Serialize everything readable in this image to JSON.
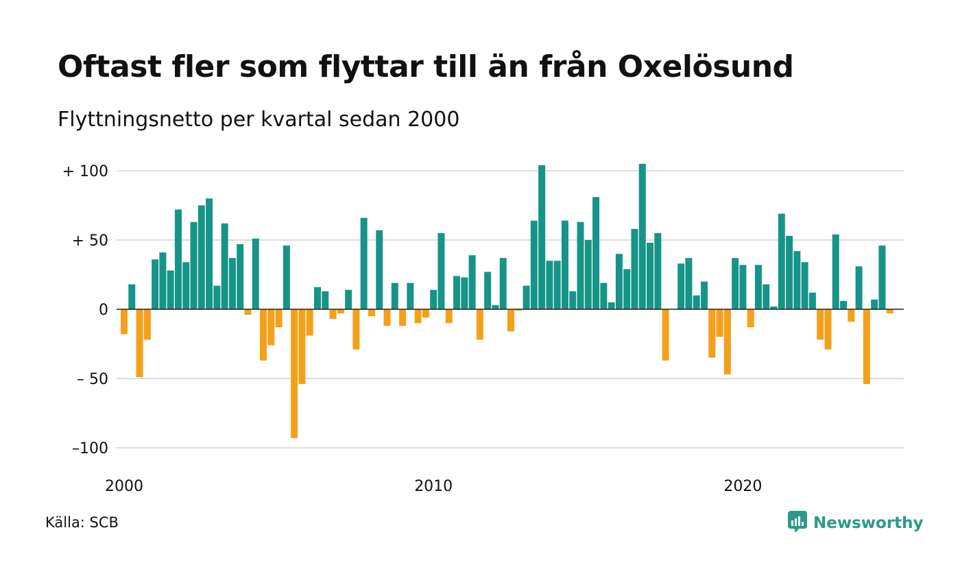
{
  "title": "Oftast fler som flyttar till än från Oxelösund",
  "subtitle": "Flyttningsnetto per kvartal sedan 2000",
  "source": "Källa: SCB",
  "brand": "Newsworthy",
  "icon": "newsworthy-logo-icon",
  "colors": {
    "positive": "#169487",
    "negative": "#f5a01a",
    "grid": "#dddddd",
    "zero": "#222222",
    "brand": "#2b9a8a"
  },
  "chart_data": {
    "type": "bar",
    "x_start": "2000-Q1",
    "xticks": [
      {
        "label": "2000",
        "index": 0
      },
      {
        "label": "2010",
        "index": 40
      },
      {
        "label": "2020",
        "index": 80
      }
    ],
    "yticks": [
      {
        "label": "+ 100",
        "value": 100
      },
      {
        "label": "+  50",
        "value": 50
      },
      {
        "label": "0",
        "value": 0
      },
      {
        "label": "– 50",
        "value": -50
      },
      {
        "label": "–100",
        "value": -100
      }
    ],
    "ylim": [
      -110,
      106
    ],
    "grid": true,
    "values": [
      -18,
      18,
      -49,
      -22,
      36,
      41,
      28,
      72,
      34,
      63,
      75,
      80,
      17,
      62,
      37,
      47,
      -4,
      51,
      -37,
      -26,
      -13,
      46,
      -93,
      -54,
      -19,
      16,
      13,
      -7,
      -3,
      14,
      -29,
      66,
      -5,
      57,
      -12,
      19,
      -12,
      19,
      -10,
      -6,
      14,
      55,
      -10,
      24,
      23,
      39,
      -22,
      27,
      3,
      37,
      -16,
      -1,
      17,
      64,
      104,
      35,
      35,
      64,
      13,
      63,
      50,
      81,
      19,
      5,
      40,
      29,
      58,
      105,
      48,
      55,
      -37,
      0,
      33,
      37,
      10,
      20,
      -35,
      -20,
      -47,
      37,
      32,
      -13,
      32,
      18,
      2,
      69,
      53,
      42,
      34,
      12,
      -22,
      -29,
      54,
      6,
      -9,
      31,
      -54,
      7,
      46,
      -3
    ]
  }
}
